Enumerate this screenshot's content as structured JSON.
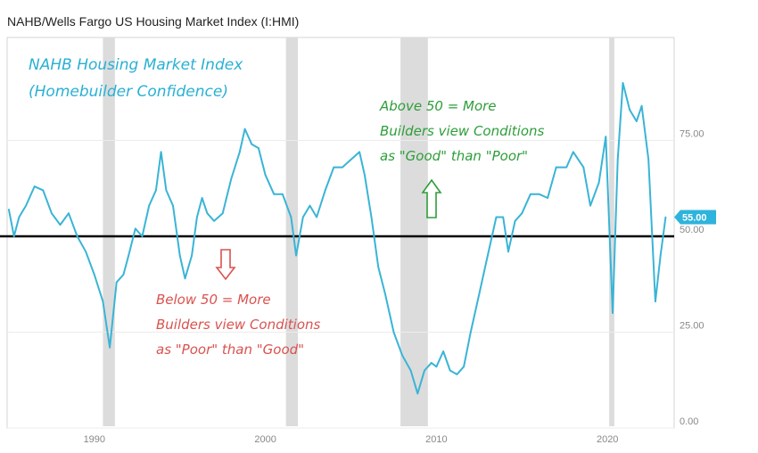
{
  "chart_data": {
    "type": "line",
    "title": "NAHB/Wells Fargo US Housing Market Index (I:HMI)",
    "series": [
      {
        "name": "NAHB Housing Market Index",
        "color": "#3ab4d6",
        "points": [
          [
            1985.0,
            57
          ],
          [
            1985.3,
            50
          ],
          [
            1985.6,
            55
          ],
          [
            1986.0,
            58
          ],
          [
            1986.5,
            63
          ],
          [
            1987.0,
            62
          ],
          [
            1987.5,
            56
          ],
          [
            1988.0,
            53
          ],
          [
            1988.5,
            56
          ],
          [
            1989.0,
            50
          ],
          [
            1989.5,
            46
          ],
          [
            1990.0,
            40
          ],
          [
            1990.5,
            33
          ],
          [
            1990.9,
            21
          ],
          [
            1991.3,
            38
          ],
          [
            1991.7,
            40
          ],
          [
            1992.0,
            45
          ],
          [
            1992.4,
            52
          ],
          [
            1992.8,
            50
          ],
          [
            1993.2,
            58
          ],
          [
            1993.6,
            62
          ],
          [
            1993.9,
            72
          ],
          [
            1994.2,
            62
          ],
          [
            1994.6,
            58
          ],
          [
            1995.0,
            45
          ],
          [
            1995.3,
            39
          ],
          [
            1995.7,
            45
          ],
          [
            1996.0,
            55
          ],
          [
            1996.3,
            60
          ],
          [
            1996.6,
            56
          ],
          [
            1997.0,
            54
          ],
          [
            1997.5,
            56
          ],
          [
            1998.0,
            65
          ],
          [
            1998.5,
            72
          ],
          [
            1998.8,
            78
          ],
          [
            1999.2,
            74
          ],
          [
            1999.6,
            73
          ],
          [
            2000.0,
            66
          ],
          [
            2000.5,
            61
          ],
          [
            2001.0,
            61
          ],
          [
            2001.5,
            55
          ],
          [
            2001.8,
            45
          ],
          [
            2002.2,
            55
          ],
          [
            2002.6,
            58
          ],
          [
            2003.0,
            55
          ],
          [
            2003.5,
            62
          ],
          [
            2004.0,
            68
          ],
          [
            2004.5,
            68
          ],
          [
            2005.0,
            70
          ],
          [
            2005.5,
            72
          ],
          [
            2005.8,
            66
          ],
          [
            2006.2,
            55
          ],
          [
            2006.6,
            42
          ],
          [
            2007.0,
            35
          ],
          [
            2007.5,
            25
          ],
          [
            2008.0,
            19
          ],
          [
            2008.5,
            15
          ],
          [
            2008.9,
            9
          ],
          [
            2009.3,
            15
          ],
          [
            2009.7,
            17
          ],
          [
            2010.0,
            16
          ],
          [
            2010.4,
            20
          ],
          [
            2010.8,
            15
          ],
          [
            2011.2,
            14
          ],
          [
            2011.6,
            16
          ],
          [
            2012.0,
            25
          ],
          [
            2012.5,
            35
          ],
          [
            2013.0,
            45
          ],
          [
            2013.5,
            55
          ],
          [
            2013.9,
            55
          ],
          [
            2014.2,
            46
          ],
          [
            2014.6,
            54
          ],
          [
            2015.0,
            56
          ],
          [
            2015.5,
            61
          ],
          [
            2016.0,
            61
          ],
          [
            2016.5,
            60
          ],
          [
            2017.0,
            68
          ],
          [
            2017.6,
            68
          ],
          [
            2018.0,
            72
          ],
          [
            2018.6,
            68
          ],
          [
            2019.0,
            58
          ],
          [
            2019.5,
            64
          ],
          [
            2019.9,
            76
          ],
          [
            2020.3,
            30
          ],
          [
            2020.6,
            70
          ],
          [
            2020.9,
            90
          ],
          [
            2021.3,
            83
          ],
          [
            2021.7,
            80
          ],
          [
            2022.0,
            84
          ],
          [
            2022.4,
            70
          ],
          [
            2022.8,
            33
          ],
          [
            2023.1,
            45
          ],
          [
            2023.4,
            55
          ]
        ]
      }
    ],
    "recessions": [
      [
        1990.5,
        1991.2
      ],
      [
        2001.2,
        2001.9
      ],
      [
        2007.9,
        2009.5
      ],
      [
        2020.1,
        2020.4
      ]
    ],
    "reference_line": 50,
    "xlim": [
      1984.9,
      2023.9
    ],
    "ylim": [
      0,
      100
    ],
    "x_ticks": [
      1990,
      2000,
      2010,
      2020
    ],
    "y_ticks": [
      {
        "value": 75,
        "label": "75.00"
      },
      {
        "value": 50,
        "label": "50.00"
      },
      {
        "value": 25,
        "label": "25.00"
      },
      {
        "value": 0,
        "label": "0.00"
      }
    ],
    "last_value_label": "55.00",
    "annotations": {
      "main_title": [
        "NAHB Housing Market Index",
        "(Homebuilder Confidence)"
      ],
      "above": [
        "Above 50 = More",
        "Builders view Conditions",
        "as \"Good\" than \"Poor\""
      ],
      "below": [
        "Below 50 = More",
        "Builders view Conditions",
        "as \"Poor\" than \"Good\""
      ]
    },
    "colors": {
      "line": "#3ab4d6",
      "title_annotation": "#29b0d4",
      "above": "#2e9e3a",
      "below": "#d9534f",
      "recession": "#dcdcdc",
      "badge": "#2eb3dc"
    }
  }
}
